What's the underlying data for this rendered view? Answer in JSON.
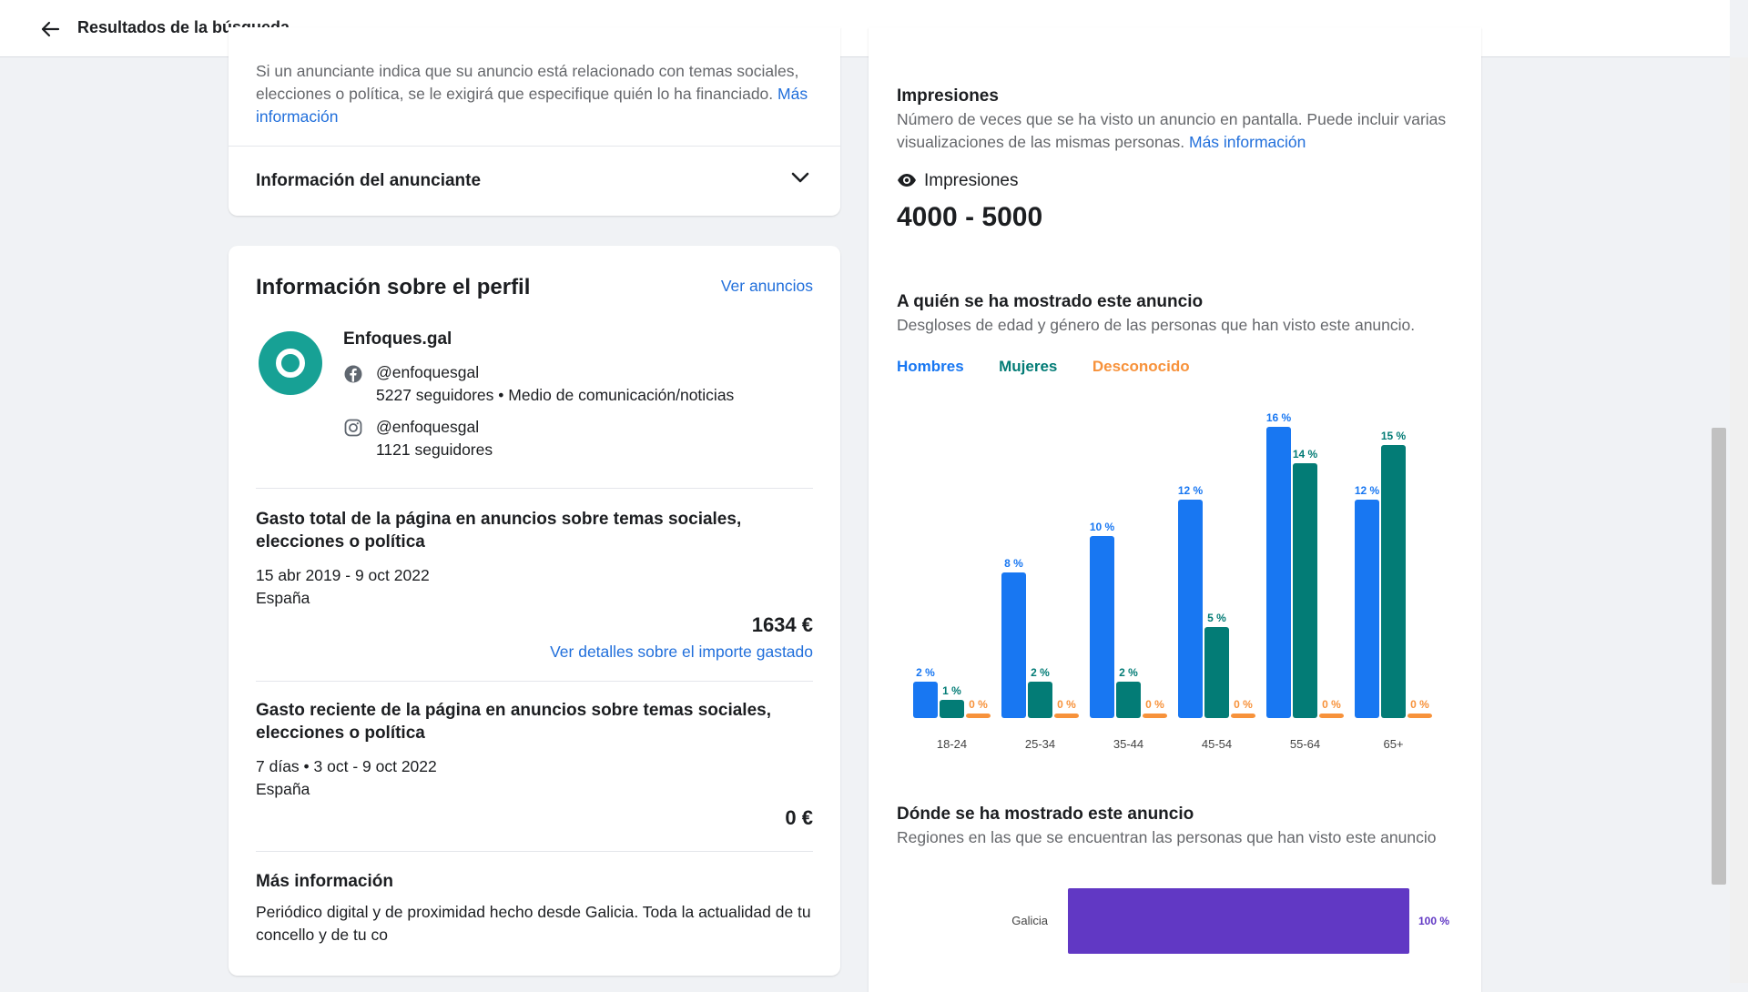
{
  "header": {
    "back_icon": "arrow-left-icon",
    "title": "Resultados de la búsqueda"
  },
  "top_card": {
    "disclaimer": "Si un anunciante indica que su anuncio está relacionado con temas sociales, elecciones o política, se le exigirá que especifique quién lo ha financiado.",
    "disclaimer_link": "Más información",
    "advertiser_section_label": "Información del anunciante",
    "chevron_icon": "chevron-down-icon"
  },
  "profile": {
    "title": "Información sobre el perfil",
    "see_ads_link": "Ver anuncios",
    "page_name": "Enfoques.gal",
    "facebook": {
      "icon": "facebook-icon",
      "handle": "@enfoquesgal",
      "details": "5227 seguidores • Medio de comunicación/noticias"
    },
    "instagram": {
      "icon": "instagram-icon",
      "handle": "@enfoquesgal",
      "details": "1121 seguidores"
    },
    "total_spend": {
      "title": "Gasto total de la página en anuncios sobre temas sociales, elecciones o política",
      "date_range": "15 abr 2019 - 9 oct 2022",
      "country": "España",
      "amount": "1634 €",
      "details_link": "Ver detalles sobre el importe gastado"
    },
    "recent_spend": {
      "title": "Gasto reciente de la página en anuncios sobre temas sociales, elecciones o política",
      "date_range": "7 días • 3 oct - 9 oct 2022",
      "country": "España",
      "amount": "0 €"
    },
    "more_info": {
      "title": "Más información",
      "text": "Periódico digital y de proximidad hecho desde Galicia. Toda la actualidad de tu concello y de tu co"
    }
  },
  "impressions": {
    "title": "Impresiones",
    "description": "Número de veces que se ha visto un anuncio en pantalla. Puede incluir varias visualizaciones de las mismas personas.",
    "description_link": "Más información",
    "eye_icon": "eye-icon",
    "label": "Impresiones",
    "value": "4000 - 5000"
  },
  "audience": {
    "title": "A quién se ha mostrado este anuncio",
    "subtitle": "Desgloses de edad y género de las personas que han visto este anuncio.",
    "legend": {
      "men": "Hombres",
      "women": "Mujeres",
      "unknown": "Desconocido"
    }
  },
  "regions": {
    "title": "Dónde se ha mostrado este anuncio",
    "subtitle": "Regiones en las que se encuentran las personas que han visto este anuncio"
  },
  "colors": {
    "men": "#1877f2",
    "women": "#037c76",
    "unknown": "#f7923b",
    "region": "#6138c4",
    "link": "#216fdb"
  },
  "chart_data": [
    {
      "type": "bar",
      "categories": [
        "18-24",
        "25-34",
        "35-44",
        "45-54",
        "55-64",
        "65+"
      ],
      "series": [
        {
          "name": "Hombres",
          "values": [
            2,
            8,
            10,
            12,
            16,
            12
          ],
          "labels": [
            "2 %",
            "8 %",
            "10 %",
            "12 %",
            "16 %",
            "12 %"
          ]
        },
        {
          "name": "Mujeres",
          "values": [
            1,
            2,
            2,
            5,
            14,
            15
          ],
          "labels": [
            "1 %",
            "2 %",
            "2 %",
            "5 %",
            "14 %",
            "15 %"
          ]
        },
        {
          "name": "Desconocido",
          "values": [
            0,
            0,
            0,
            0,
            0,
            0
          ],
          "labels": [
            "0 %",
            "0 %",
            "0 %",
            "0 %",
            "0 %",
            "0 %"
          ]
        }
      ],
      "ylim": [
        0,
        16
      ],
      "legend": "top-left",
      "grid": false
    },
    {
      "type": "bar",
      "orientation": "horizontal",
      "categories": [
        "Galicia"
      ],
      "values": [
        100
      ],
      "labels": [
        "100 %"
      ],
      "xlim": [
        0,
        100
      ]
    }
  ]
}
